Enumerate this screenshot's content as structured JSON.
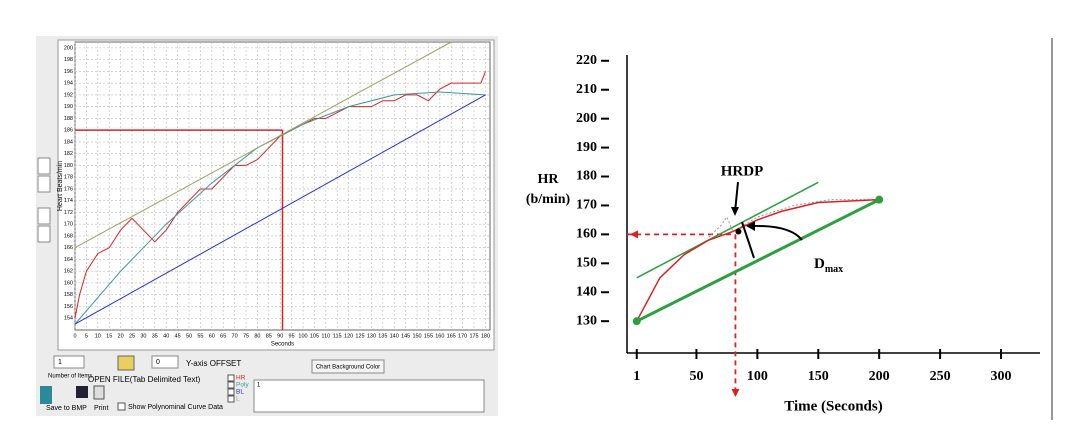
{
  "chart_data": [
    {
      "type": "line",
      "x_label": "Seconds",
      "y_label": "Heart Beats/min",
      "xlim": [
        0,
        182
      ],
      "ylim": [
        152,
        201
      ],
      "grid": true,
      "xticks": [
        0,
        5,
        10,
        15,
        20,
        25,
        30,
        35,
        40,
        45,
        50,
        55,
        60,
        65,
        70,
        75,
        80,
        85,
        90,
        95,
        100,
        105,
        110,
        115,
        120,
        125,
        130,
        135,
        140,
        145,
        150,
        155,
        160,
        165,
        170,
        175,
        180
      ],
      "yticks": [
        154,
        156,
        158,
        160,
        162,
        164,
        166,
        168,
        170,
        172,
        174,
        176,
        178,
        180,
        182,
        184,
        186,
        188,
        190,
        192,
        194,
        196,
        198,
        200
      ],
      "series": [
        {
          "name": "HR",
          "color": "#e02020",
          "x": [
            0,
            2,
            5,
            10,
            15,
            20,
            25,
            30,
            35,
            40,
            45,
            50,
            55,
            60,
            65,
            70,
            75,
            80,
            85,
            90,
            95,
            100,
            105,
            110,
            115,
            120,
            125,
            130,
            135,
            140,
            145,
            150,
            155,
            160,
            165,
            170,
            175,
            178,
            180
          ],
          "values": [
            154,
            158,
            162,
            165,
            166,
            169,
            171,
            169,
            167,
            169,
            172,
            174,
            176,
            176,
            178,
            180,
            180,
            181,
            183,
            185,
            186,
            187,
            188,
            188,
            189,
            190,
            190,
            190,
            191,
            191,
            192,
            192,
            191,
            193,
            194,
            194,
            194,
            194,
            196
          ]
        },
        {
          "name": "Poly",
          "color": "#3a9a9a",
          "x": [
            0,
            20,
            40,
            60,
            80,
            100,
            120,
            140,
            160,
            180
          ],
          "values": [
            153,
            162,
            170,
            177,
            183,
            187,
            190,
            192,
            192.5,
            192
          ]
        },
        {
          "name": "BL",
          "color": "#2030e0",
          "x": [
            0,
            180
          ],
          "values": [
            153,
            192
          ]
        },
        {
          "name": "L",
          "color": "#a0a060",
          "x": [
            0,
            165
          ],
          "values": [
            166,
            201
          ]
        }
      ],
      "crosshair": {
        "x": 91,
        "y": 186,
        "color": "#e02020"
      }
    },
    {
      "type": "line",
      "x_label": "Time (Seconds)",
      "y_label": [
        "HR",
        "(b/min)"
      ],
      "xlim": [
        -7,
        332
      ],
      "ylim": [
        119,
        222
      ],
      "grid": false,
      "xticks": [
        1,
        50,
        100,
        150,
        200,
        250,
        300
      ],
      "yticks": [
        130,
        140,
        150,
        160,
        170,
        180,
        190,
        200,
        210,
        220
      ],
      "series": [
        {
          "color": "#2aa040",
          "x": [
            1,
            200
          ],
          "values": [
            130,
            172
          ],
          "width": 3
        },
        {
          "color": "#2aa040",
          "x": [
            1,
            150
          ],
          "values": [
            145,
            178
          ],
          "width": 1.5
        },
        {
          "color": "#999999",
          "x": [
            60,
            70,
            75,
            80,
            100,
            130,
            160,
            200
          ],
          "values": [
            159,
            163,
            166,
            161,
            166,
            170,
            172,
            172
          ],
          "dash": true
        },
        {
          "color": "#e02020",
          "x": [
            1,
            20,
            40,
            60,
            80,
            100,
            120,
            150,
            200
          ],
          "values": [
            130,
            145,
            153,
            158,
            161,
            165,
            168,
            171,
            172
          ],
          "width": 1.5
        }
      ],
      "crosshair": {
        "x": 82,
        "y": 160,
        "color": "#e02020"
      },
      "annotations": [
        {
          "label": "HRDP"
        },
        {
          "label": "D",
          "subscript": "max"
        }
      ]
    }
  ],
  "ui": {
    "number_of_items_value": "1",
    "number_of_items": "Number of Items",
    "offset_value": "0",
    "offset": "Y-axis OFFSET",
    "open_file": "OPEN FILE(Tab Delimited Text)",
    "background": "Chart Background Color",
    "save": "Save to BMP",
    "print": "Print",
    "show_poly": "Show Polynominal Curve Data",
    "text_box": "1"
  }
}
